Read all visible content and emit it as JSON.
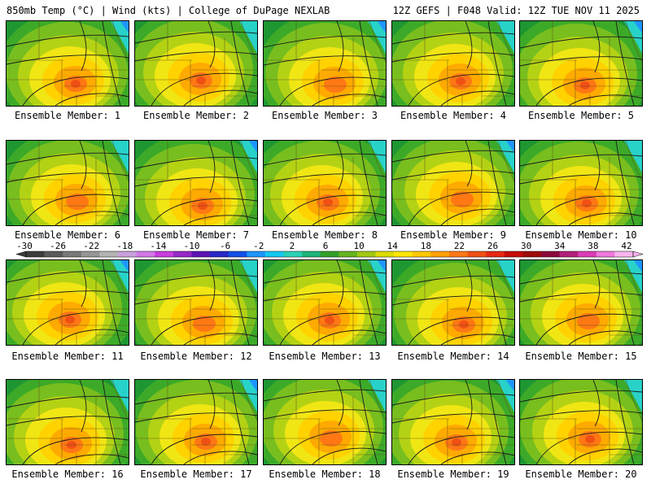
{
  "header": {
    "left": "850mb Temp (°C) | Wind (kts) | College of DuPage NEXLAB",
    "right": "12Z GEFS | F048 Valid: 12Z TUE NOV 11 2025"
  },
  "members": [
    {
      "label": "Ensemble Member: 1",
      "member": 1
    },
    {
      "label": "Ensemble Member: 2",
      "member": 2
    },
    {
      "label": "Ensemble Member: 3",
      "member": 3
    },
    {
      "label": "Ensemble Member: 4",
      "member": 4
    },
    {
      "label": "Ensemble Member: 5",
      "member": 5
    },
    {
      "label": "Ensemble Member: 6",
      "member": 6
    },
    {
      "label": "Ensemble Member: 7",
      "member": 7
    },
    {
      "label": "Ensemble Member: 8",
      "member": 8
    },
    {
      "label": "Ensemble Member: 9",
      "member": 9
    },
    {
      "label": "Ensemble Member: 10",
      "member": 10
    },
    {
      "label": "Ensemble Member: 11",
      "member": 11
    },
    {
      "label": "Ensemble Member: 12",
      "member": 12
    },
    {
      "label": "Ensemble Member: 13",
      "member": 13
    },
    {
      "label": "Ensemble Member: 14",
      "member": 14
    },
    {
      "label": "Ensemble Member: 15",
      "member": 15
    },
    {
      "label": "Ensemble Member: 16",
      "member": 16
    },
    {
      "label": "Ensemble Member: 17",
      "member": 17
    },
    {
      "label": "Ensemble Member: 18",
      "member": 18
    },
    {
      "label": "Ensemble Member: 19",
      "member": 19
    },
    {
      "label": "Ensemble Member: 20",
      "member": 20
    }
  ],
  "colorbar": {
    "ticks": [
      "-30",
      "-26",
      "-22",
      "-18",
      "-14",
      "-10",
      "-6",
      "-2",
      "2",
      "6",
      "10",
      "14",
      "18",
      "22",
      "26",
      "30",
      "34",
      "38",
      "42"
    ],
    "colors": [
      "#3c3c3c",
      "#5a5a5a",
      "#787878",
      "#969696",
      "#b4b4b4",
      "#c8a0dc",
      "#d278e6",
      "#c83cdc",
      "#9628c8",
      "#5a14b4",
      "#2828c8",
      "#1450e6",
      "#1e96ff",
      "#14c8f0",
      "#28d2b4",
      "#1eb478",
      "#32a028",
      "#64b41e",
      "#a0c814",
      "#dcdc00",
      "#ffe600",
      "#ffc800",
      "#ffa000",
      "#ff7814",
      "#f05014",
      "#e62814",
      "#c80a0a",
      "#a00a0a",
      "#8c0a3c",
      "#b41e78",
      "#dc3cb4",
      "#f078dc",
      "#fab4f0"
    ]
  },
  "map_colors": {
    "outer": "#1e9632",
    "green_mid": "#3caa28",
    "green_light": "#78be1e",
    "yellow_green": "#b4d214",
    "yellow": "#f0e614",
    "yellow_orange": "#ffd200",
    "orange": "#ffaa00",
    "deep_orange": "#ff7814",
    "red_orange": "#f05014",
    "cyan": "#28d2c8",
    "blue": "#1e96ff"
  }
}
